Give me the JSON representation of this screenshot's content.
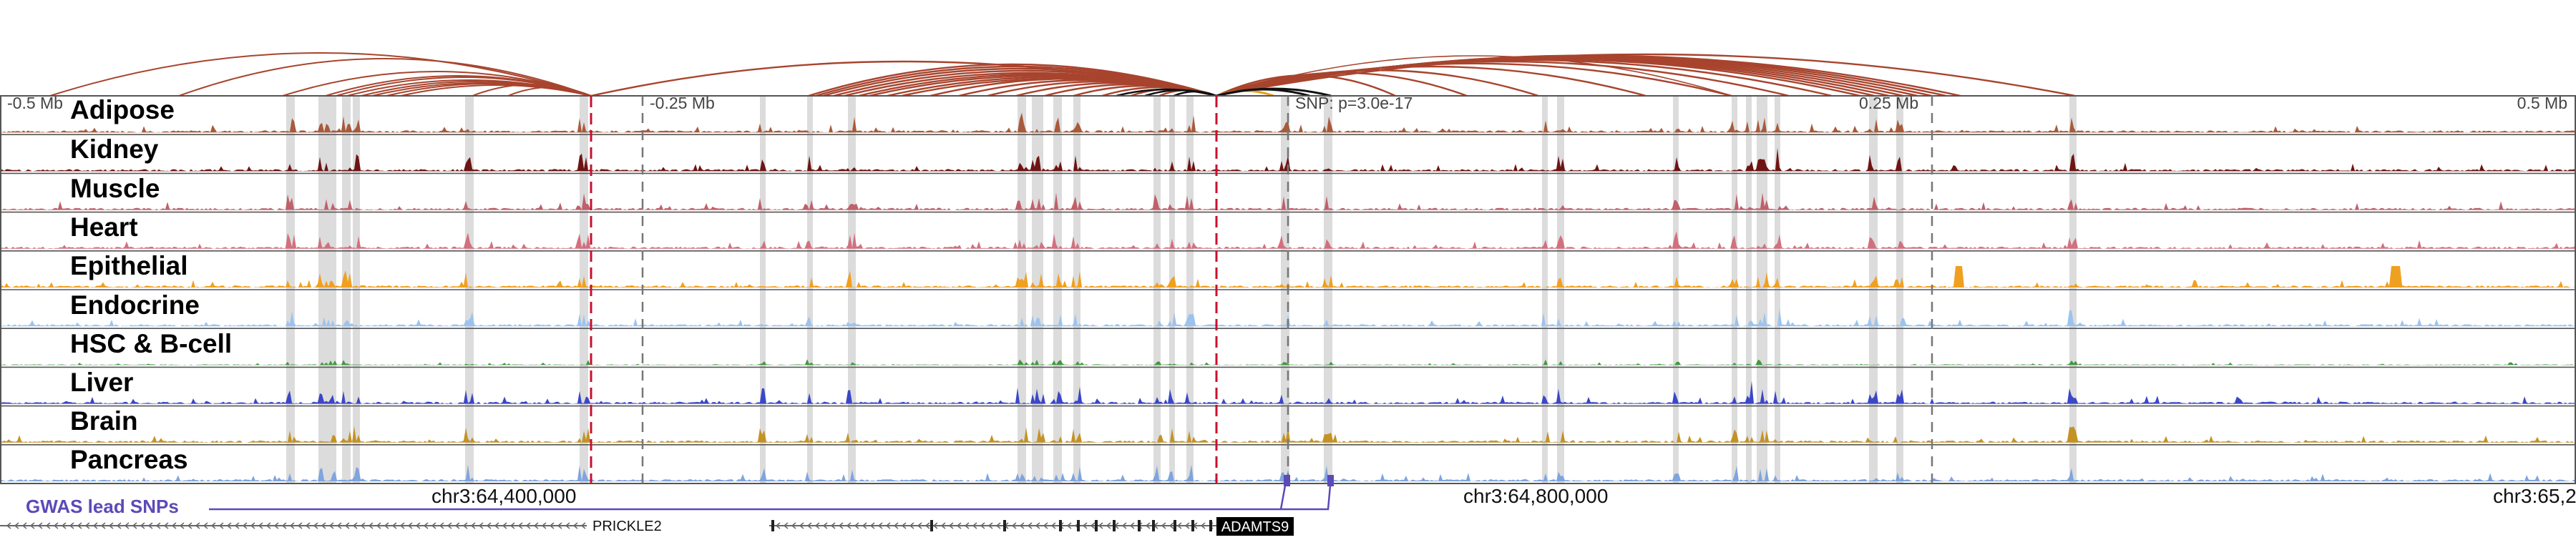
{
  "tracks": [
    {
      "label": "Adipose",
      "color": "#a85a3a"
    },
    {
      "label": "Kidney",
      "color": "#6e1414"
    },
    {
      "label": "Muscle",
      "color": "#c0606a"
    },
    {
      "label": "Heart",
      "color": "#d2707e"
    },
    {
      "label": "Epithelial",
      "color": "#f0a020"
    },
    {
      "label": "Endocrine",
      "color": "#9cc3ef"
    },
    {
      "label": "HSC & B-cell",
      "color": "#3f9a3c"
    },
    {
      "label": "Liver",
      "color": "#3a47c8"
    },
    {
      "label": "Brain",
      "color": "#c49224"
    },
    {
      "label": "Pancreas",
      "color": "#7fa4de"
    }
  ],
  "axis_labels": {
    "left": "-0.5 Mb",
    "mid_left": "-0.25 Mb",
    "snp": "SNP: p=3.0e-17",
    "mid_right": "0.25 Mb",
    "right": "0.5 Mb"
  },
  "coordinates": {
    "c1": "chr3:64,400,000",
    "c2": "chr3:64,800,000",
    "c3": "chr3:65,2"
  },
  "gwas_label": "GWAS lead SNPs",
  "genes": {
    "prickle2": "PRICKLE2",
    "adamts9": "ADAMTS9"
  },
  "colors": {
    "arc": "#a8442e",
    "arc_strong": "#111111",
    "arc_orange": "#e8a020",
    "highlight": "#dcdcdc",
    "dashed_red": "#c8102e",
    "gwas": "#5b4ab8"
  }
}
